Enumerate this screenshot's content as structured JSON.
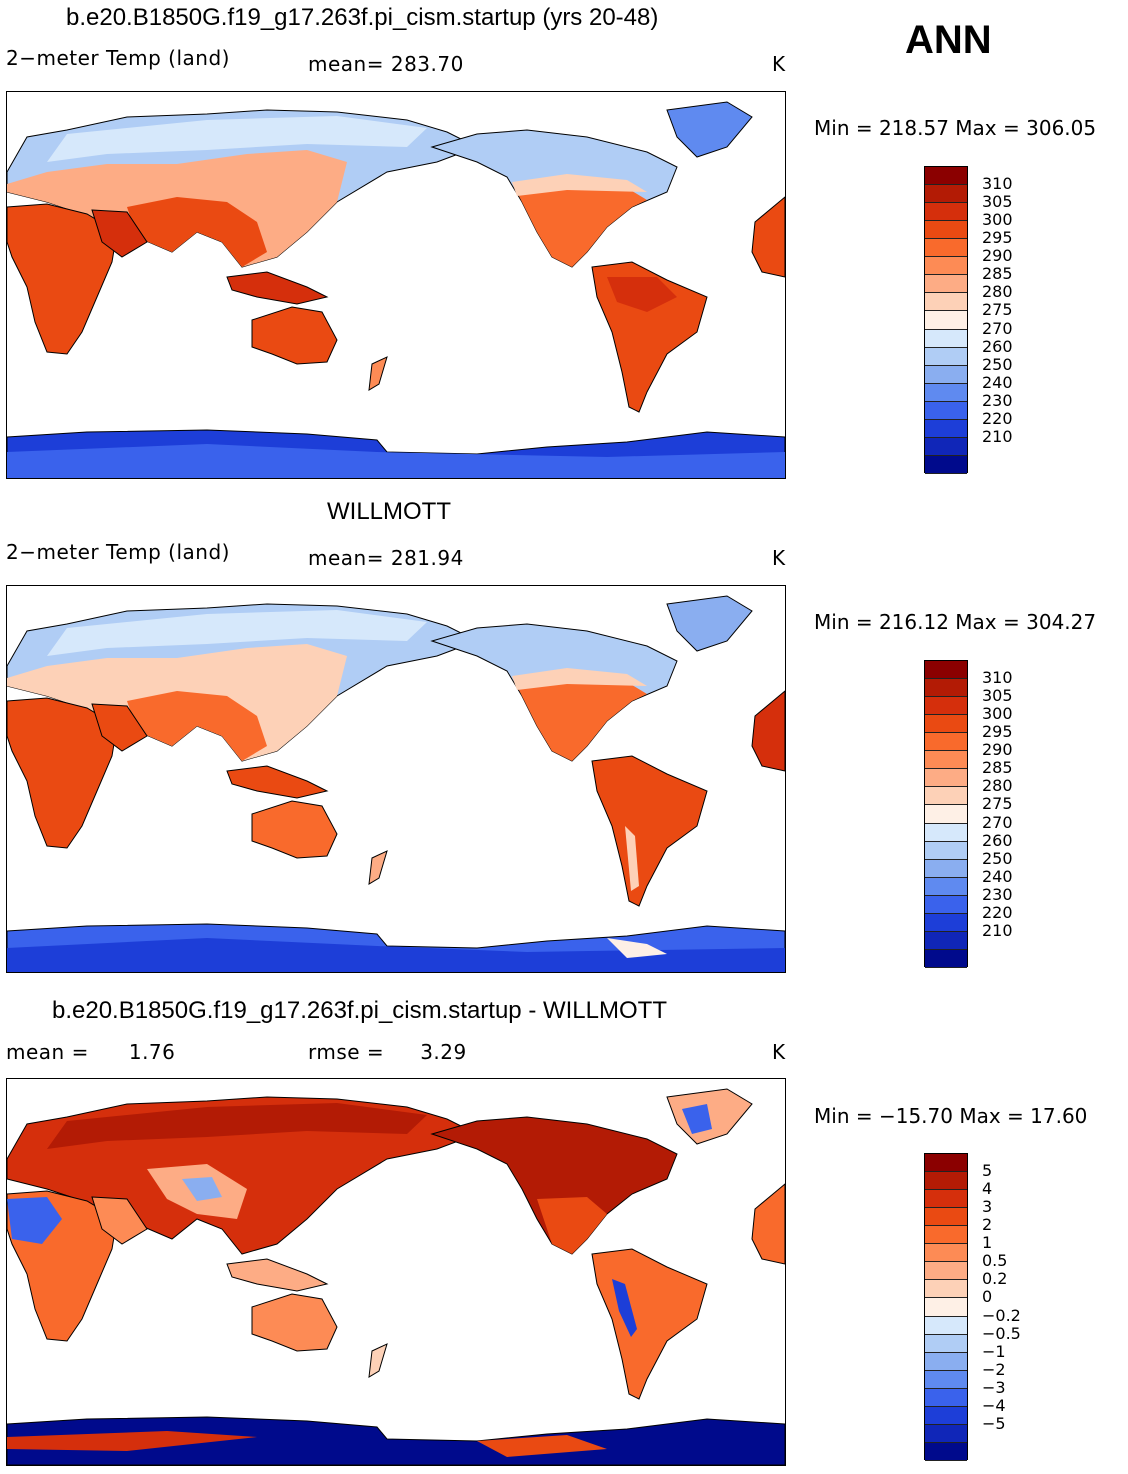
{
  "ann": "ANN",
  "units_label": "K",
  "panels": [
    {
      "title": "b.e20.B1850G.f19_g17.263f.pi_cism.startup (yrs 20-48)",
      "variable": "2−meter Temp (land)",
      "stat_label": "mean=",
      "stat_value": "283.70",
      "minmax": "Min  =  218.57  Max  =  306.05",
      "colorbar": {
        "labels": [
          "310",
          "305",
          "300",
          "295",
          "290",
          "285",
          "280",
          "275",
          "270",
          "260",
          "250",
          "240",
          "230",
          "220",
          "210"
        ],
        "colors": [
          "#8b0000",
          "#b31b05",
          "#d52f0c",
          "#ea4a12",
          "#f96a2c",
          "#fd8b55",
          "#fdac85",
          "#fdd1b7",
          "#fef0e6",
          "#d6e8fb",
          "#b0cdf5",
          "#8aaef0",
          "#5f8af0",
          "#3a62ec",
          "#1d3ed8",
          "#1026b8",
          "#000a8c"
        ]
      }
    },
    {
      "title": "WILLMOTT",
      "variable": "2−meter Temp (land)",
      "stat_label": "mean=",
      "stat_value": "281.94",
      "minmax": "Min  =  216.12  Max  =  304.27",
      "colorbar": {
        "labels": [
          "310",
          "305",
          "300",
          "295",
          "290",
          "285",
          "280",
          "275",
          "270",
          "260",
          "250",
          "240",
          "230",
          "220",
          "210"
        ],
        "colors": [
          "#8b0000",
          "#b31b05",
          "#d52f0c",
          "#ea4a12",
          "#f96a2c",
          "#fd8b55",
          "#fdac85",
          "#fdd1b7",
          "#fef0e6",
          "#d6e8fb",
          "#b0cdf5",
          "#8aaef0",
          "#5f8af0",
          "#3a62ec",
          "#1d3ed8",
          "#1026b8",
          "#000a8c"
        ]
      }
    },
    {
      "title": "b.e20.B1850G.f19_g17.263f.pi_cism.startup - WILLMOTT",
      "variable": "mean =",
      "variable_value": "1.76",
      "stat_label": "rmse =",
      "stat_value": "3.29",
      "minmax": "Min  =  −15.70  Max  =   17.60",
      "colorbar": {
        "labels": [
          "5",
          "4",
          "3",
          "2",
          "1",
          "0.5",
          "0.2",
          "0",
          "−0.2",
          "−0.5",
          "−1",
          "−2",
          "−3",
          "−4",
          "−5"
        ],
        "colors": [
          "#8b0000",
          "#b31b05",
          "#d52f0c",
          "#ea4a12",
          "#f96a2c",
          "#fd8b55",
          "#fdac85",
          "#fdd1b7",
          "#fef0e6",
          "#d6e8fb",
          "#b0cdf5",
          "#8aaef0",
          "#5f8af0",
          "#3a62ec",
          "#1d3ed8",
          "#1026b8",
          "#000a8c"
        ]
      }
    }
  ]
}
